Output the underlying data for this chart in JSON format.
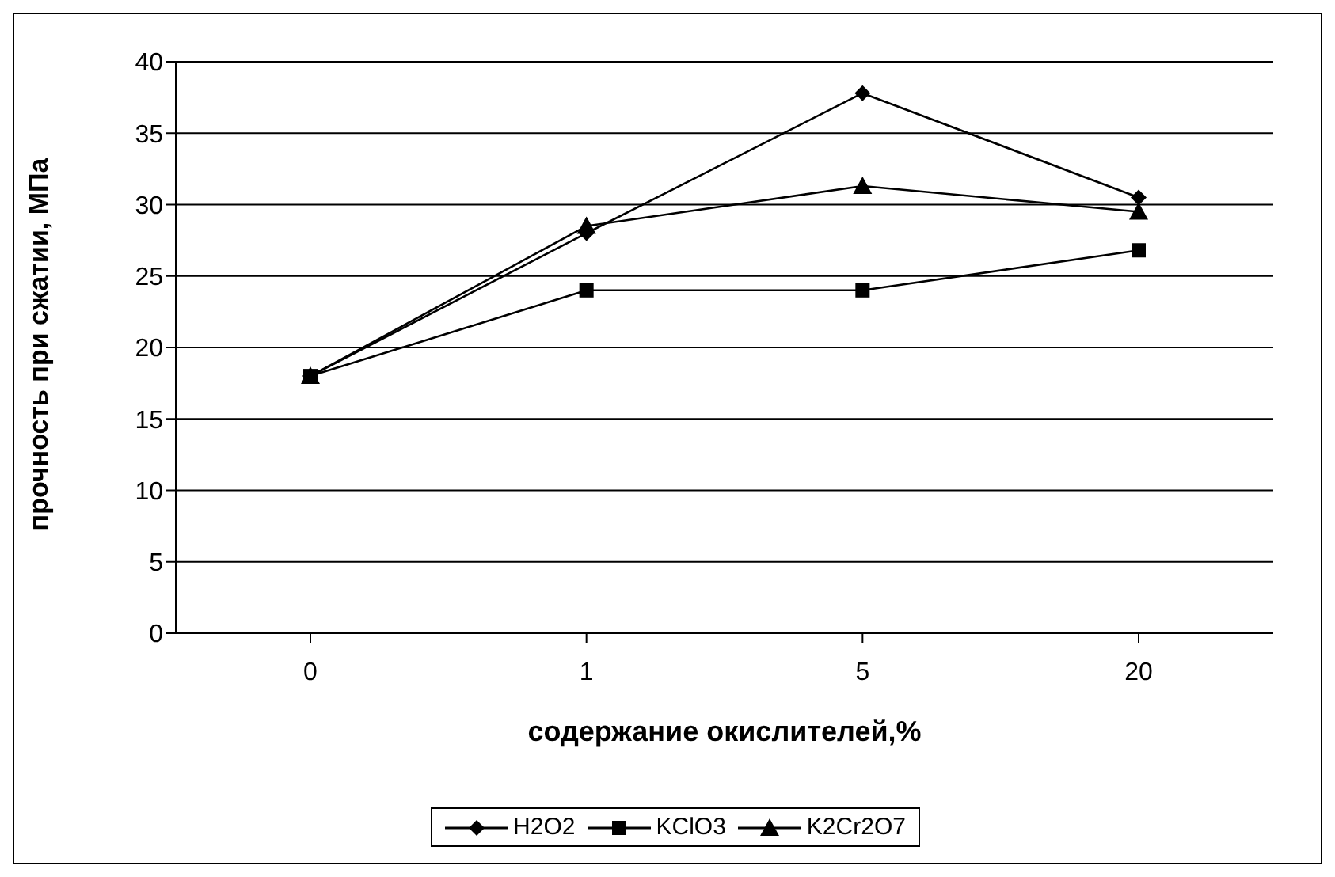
{
  "chart_data": {
    "type": "line",
    "xlabel": "содержание окислителей,%",
    "ylabel": "прочность при сжатии, МПа",
    "categories": [
      "0",
      "1",
      "5",
      "20"
    ],
    "series": [
      {
        "name": "H2O2",
        "color": "#000000",
        "marker": "diamond",
        "values": [
          18,
          28,
          37.8,
          30.5
        ]
      },
      {
        "name": "KClO3",
        "color": "#000000",
        "marker": "square",
        "values": [
          18,
          24,
          24,
          26.8
        ]
      },
      {
        "name": "K2Cr2O7",
        "color": "#000000",
        "marker": "triangle",
        "values": [
          18,
          28.5,
          31.3,
          29.5
        ]
      }
    ],
    "ylim": [
      0,
      40
    ],
    "yticks": [
      0,
      5,
      10,
      15,
      20,
      25,
      30,
      35,
      40
    ],
    "grid": "y",
    "legend": "bottom"
  }
}
